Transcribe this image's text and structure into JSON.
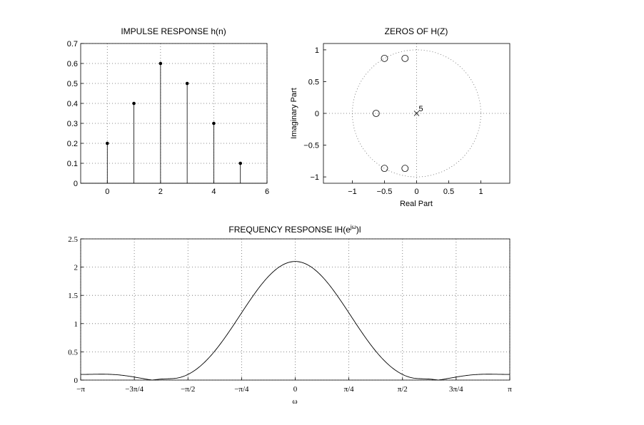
{
  "chart_data": [
    {
      "type": "stem",
      "title": "IMPULSE RESPONSE h(n)",
      "xlabel": "",
      "ylabel": "",
      "x": [
        0,
        1,
        2,
        3,
        4,
        5
      ],
      "values": [
        0.2,
        0.4,
        0.6,
        0.5,
        0.3,
        0.1
      ],
      "xlim": [
        -1,
        6
      ],
      "ylim": [
        0,
        0.7
      ],
      "xticks": [
        0,
        2,
        4,
        6
      ],
      "yticks": [
        0,
        0.1,
        0.2,
        0.3,
        0.4,
        0.5,
        0.6,
        0.7
      ],
      "xtick_labels": [
        "0",
        "2",
        "4",
        "6"
      ],
      "ytick_labels": [
        "0",
        "0.1",
        "0.2",
        "0.3",
        "0.4",
        "0.5",
        "0.6",
        "0.7"
      ],
      "grid": true
    },
    {
      "type": "scatter",
      "title": "ZEROS OF H(Z)",
      "xlabel": "Real Part",
      "ylabel": "Imaginary Part",
      "zeros": [
        [
          -0.5,
          0.866
        ],
        [
          -0.18,
          0.866
        ],
        [
          -0.63,
          0
        ],
        [
          -0.5,
          -0.866
        ],
        [
          -0.18,
          -0.866
        ]
      ],
      "poles": [
        [
          0,
          0
        ]
      ],
      "pole_multiplicity_label": "5",
      "unit_circle": true,
      "xlim": [
        -1.45,
        1.45
      ],
      "ylim": [
        -1.1,
        1.1
      ],
      "xticks": [
        -1,
        -0.5,
        0,
        0.5,
        1
      ],
      "yticks": [
        -1,
        -0.5,
        0,
        0.5,
        1
      ],
      "xtick_labels": [
        "−1",
        "−0.5",
        "0",
        "0.5",
        "1"
      ],
      "ytick_labels": [
        "−1",
        "−0.5",
        "0",
        "0.5",
        "1"
      ],
      "grid": false
    },
    {
      "type": "line",
      "title": "FREQUENCY RESPONSE lH(e",
      "title_sup": "jω",
      "title_suffix": ")l",
      "xlabel": "ω",
      "ylabel": "",
      "xlim": [
        -3.14159,
        3.14159
      ],
      "ylim": [
        0,
        2.5
      ],
      "xticks": [
        -3.14159,
        -2.35619,
        -1.5708,
        -0.7854,
        0,
        0.7854,
        1.5708,
        2.35619,
        3.14159
      ],
      "xtick_labels": [
        "−π",
        "−3π/4",
        "−π/2",
        "−π/4",
        "0",
        "π/4",
        "π/2",
        "3π/4",
        "π"
      ],
      "yticks": [
        0,
        0.5,
        1,
        1.5,
        2,
        2.5
      ],
      "ytick_labels": [
        "0",
        "0.5",
        "1",
        "1.5",
        "2",
        "2.5"
      ],
      "series": [
        {
          "h": [
            0.2,
            0.4,
            0.6,
            0.5,
            0.3,
            0.1
          ],
          "samples": 400
        }
      ],
      "grid": true
    }
  ]
}
